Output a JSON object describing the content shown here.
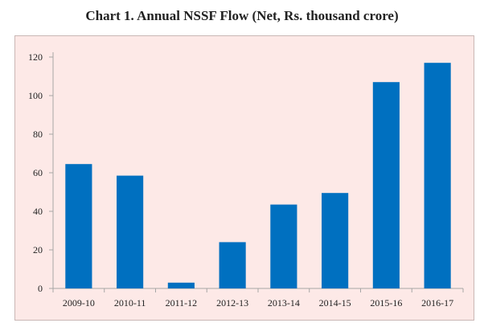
{
  "chart_data": {
    "type": "bar",
    "title": "Chart 1. Annual NSSF Flow (Net, Rs. thousand crore)",
    "xlabel": "",
    "ylabel": "",
    "categories": [
      "2009-10",
      "2010-11",
      "2011-12",
      "2012-13",
      "2013-14",
      "2014-15",
      "2015-16",
      "2016-17"
    ],
    "values": [
      64.5,
      58.5,
      3,
      24,
      43.5,
      49.5,
      107,
      117
    ],
    "ylim": [
      0,
      120
    ],
    "yticks": [
      0,
      20,
      40,
      60,
      80,
      100,
      120
    ],
    "grid": false,
    "legend": "none",
    "bar_color": "#0070c0",
    "background_color": "#fde9e7",
    "axis_color": "#a6a6a6"
  }
}
